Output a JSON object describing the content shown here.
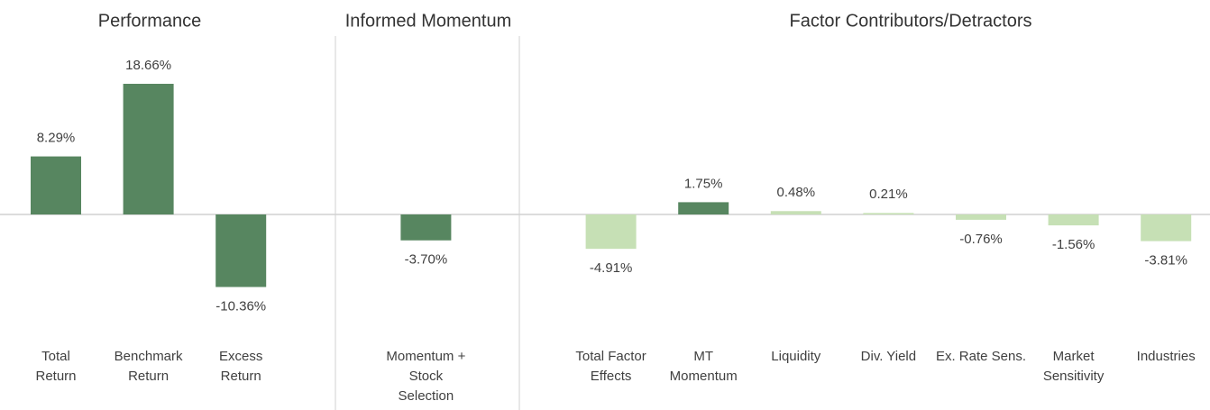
{
  "chart_data": {
    "type": "bar",
    "annotations": [
      "Performance",
      "Informed Momentum",
      "Factor Contributors/Detractors"
    ],
    "categories": [
      "Total\nReturn",
      "Benchmark\nReturn",
      "Excess\nReturn",
      "Momentum +\nStock\nSelection",
      "Total Factor\nEffects",
      "MT\nMomentum",
      "Liquidity",
      "Div. Yield",
      "Ex. Rate Sens.",
      "Market\nSensitivity",
      "Industries"
    ],
    "values": [
      8.29,
      18.66,
      -10.36,
      -3.7,
      -4.91,
      1.75,
      0.48,
      0.21,
      -0.76,
      -1.56,
      -3.81
    ],
    "value_labels": [
      "8.29%",
      "18.66%",
      "-10.36%",
      "-3.70%",
      "-4.91%",
      "1.75%",
      "0.48%",
      "0.21%",
      "-0.76%",
      "-1.56%",
      "-3.81%"
    ],
    "colors": [
      "#578660",
      "#578660",
      "#578660",
      "#578660",
      "#c6e0b5",
      "#578660",
      "#c6e0b5",
      "#c6e0b5",
      "#c6e0b5",
      "#c6e0b5",
      "#c6e0b5"
    ]
  }
}
